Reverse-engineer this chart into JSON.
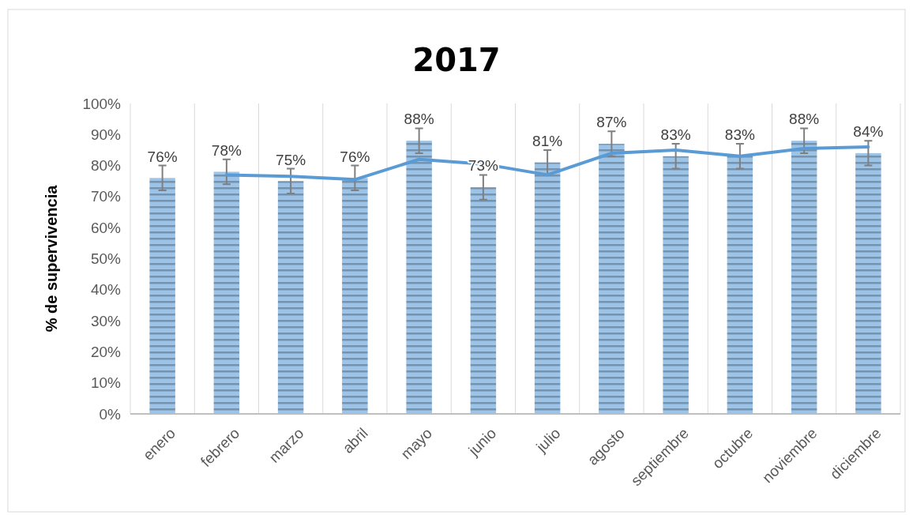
{
  "chart_data": {
    "type": "bar",
    "title": "2017",
    "ylabel": "% de supervivencia",
    "categories": [
      "enero",
      "febrero",
      "marzo",
      "abril",
      "mayo",
      "junio",
      "julio",
      "agosto",
      "septiembre",
      "octubre",
      "noviembre",
      "diciembre"
    ],
    "series": [
      {
        "color": "#9dc3e6",
        "values": [
          76,
          78,
          75,
          76,
          88,
          73,
          81,
          87,
          83,
          83,
          88,
          84
        ],
        "errors": [
          4,
          4,
          4,
          4,
          4,
          4,
          4,
          4,
          4,
          4,
          4,
          4
        ],
        "value_labels": [
          "76%",
          "78%",
          "75%",
          "76%",
          "88%",
          "73%",
          "81%",
          "87%",
          "83%",
          "83%",
          "88%",
          "84%"
        ]
      },
      {
        "type": "line",
        "color": "#5b9bd5",
        "values": [
          null,
          77,
          76.5,
          75.5,
          82,
          80.5,
          77,
          84,
          85,
          83,
          85.5,
          86
        ]
      }
    ],
    "ylim": [
      0,
      100
    ],
    "yticks": [
      {
        "value": 0,
        "label": "0%"
      },
      {
        "value": 10,
        "label": "10%"
      },
      {
        "value": 20,
        "label": "20%"
      },
      {
        "value": 30,
        "label": "30%"
      },
      {
        "value": 40,
        "label": "40%"
      },
      {
        "value": 50,
        "label": "50%"
      },
      {
        "value": 60,
        "label": "60%"
      },
      {
        "value": 70,
        "label": "70%"
      },
      {
        "value": 80,
        "label": "80%"
      },
      {
        "value": 90,
        "label": "90%"
      },
      {
        "value": 100,
        "label": "100%"
      }
    ],
    "grid": "x",
    "marker": "none",
    "line_style": "solid"
  }
}
